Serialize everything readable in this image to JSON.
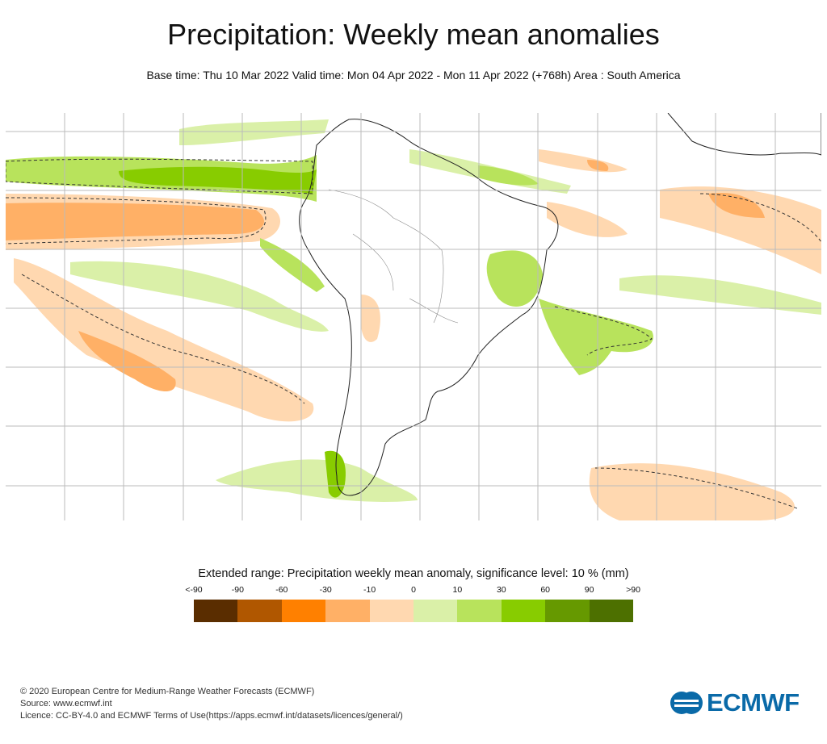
{
  "title": "Precipitation: Weekly mean anomalies",
  "subtitle": "Base time: Thu 10 Mar 2022 Valid time: Mon 04 Apr 2022 - Mon 11 Apr 2022 (+768h) Area : South America",
  "legend": {
    "title": "Extended range: Precipitation weekly mean anomaly, significance level: 10 % (mm)",
    "ticks": [
      "<-90",
      "-90",
      "-60",
      "-30",
      "-10",
      "0",
      "10",
      "30",
      "60",
      "90",
      ">90"
    ],
    "colors": [
      "#5a2d00",
      "#b05700",
      "#ff8000",
      "#ffb066",
      "#ffd8b0",
      "#daf0a8",
      "#b8e35c",
      "#88cc00",
      "#669900",
      "#4d7000"
    ]
  },
  "footer": {
    "line1": "© 2020 European Centre for Medium-Range Weather Forecasts (ECMWF)",
    "line2": "Source: www.ecmwf.int",
    "line3": "Licence: CC-BY-4.0 and ECMWF Terms of Use(https://apps.ecmwf.int/datasets/licences/general/)"
  },
  "logo_text": "ECMWF"
}
